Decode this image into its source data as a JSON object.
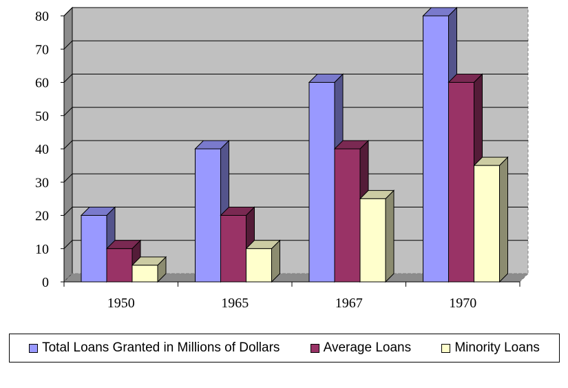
{
  "chart_data": {
    "type": "bar",
    "categories": [
      "1950",
      "1965",
      "1967",
      "1970"
    ],
    "series": [
      {
        "name": "Total Loans Granted in Millions of Dollars",
        "values": [
          20,
          40,
          60,
          80
        ],
        "color": "#9999FF"
      },
      {
        "name": "Average Loans",
        "values": [
          10,
          20,
          40,
          60
        ],
        "color": "#993366"
      },
      {
        "name": "Minority Loans",
        "values": [
          5,
          10,
          25,
          35
        ],
        "color": "#FFFFCC"
      }
    ],
    "yticks": [
      "0",
      "10",
      "20",
      "30",
      "40",
      "50",
      "60",
      "70",
      "80"
    ],
    "ylim": [
      0,
      80
    ],
    "grid": true,
    "legend_position": "bottom",
    "plot_background": "#C0C0C0",
    "title": "",
    "xlabel": "",
    "ylabel": ""
  }
}
